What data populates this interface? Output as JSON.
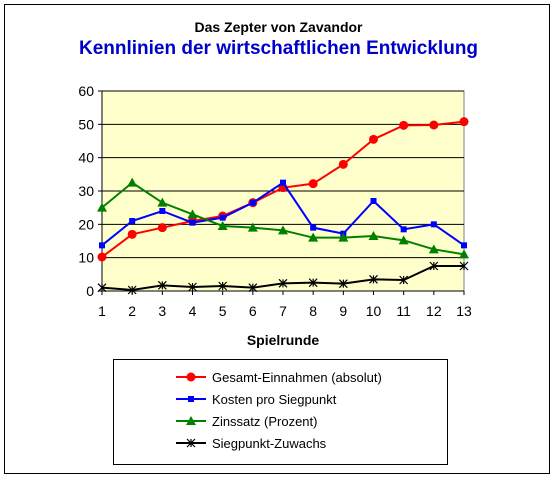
{
  "header": {
    "title": "Das Zepter von Zavandor",
    "subtitle": "Kennlinien der wirtschaftlichen Entwicklung"
  },
  "chart_data": {
    "type": "line",
    "title": "Das Zepter von Zavandor",
    "subtitle": "Kennlinien der wirtschaftlichen Entwicklung",
    "xlabel": "Spielrunde",
    "ylabel": "",
    "x": [
      1,
      2,
      3,
      4,
      5,
      6,
      7,
      8,
      9,
      10,
      11,
      12,
      13
    ],
    "ylim": [
      0,
      60
    ],
    "yticks": [
      0,
      10,
      20,
      30,
      40,
      50,
      60
    ],
    "grid": "horizontal",
    "plot_background": "#ffffcc",
    "legend_position": "bottom",
    "series": [
      {
        "name": "Gesamt-Einnahmen (absolut)",
        "color": "#ff0000",
        "marker": "circle",
        "values": [
          10.2,
          17,
          19,
          21,
          22.5,
          26.5,
          31,
          32.2,
          38,
          45.5,
          49.7,
          49.8,
          50.8
        ]
      },
      {
        "name": "Kosten pro Siegpunkt",
        "color": "#0000ff",
        "marker": "square",
        "values": [
          13.7,
          21,
          24,
          20.5,
          22,
          26.5,
          32.5,
          19,
          17.2,
          27,
          18.5,
          20,
          13.7
        ]
      },
      {
        "name": "Zinssatz (Prozent)",
        "color": "#008000",
        "marker": "triangle",
        "values": [
          25,
          32.5,
          26.5,
          23,
          19.5,
          19,
          18.2,
          16,
          16,
          16.5,
          15.2,
          12.5,
          11
        ]
      },
      {
        "name": "Siegpunkt-Zuwachs",
        "color": "#000000",
        "marker": "star",
        "values": [
          1,
          0.3,
          1.7,
          1.2,
          1.5,
          1,
          2.3,
          2.5,
          2.2,
          3.5,
          3.3,
          7.5,
          7.5
        ]
      }
    ]
  }
}
